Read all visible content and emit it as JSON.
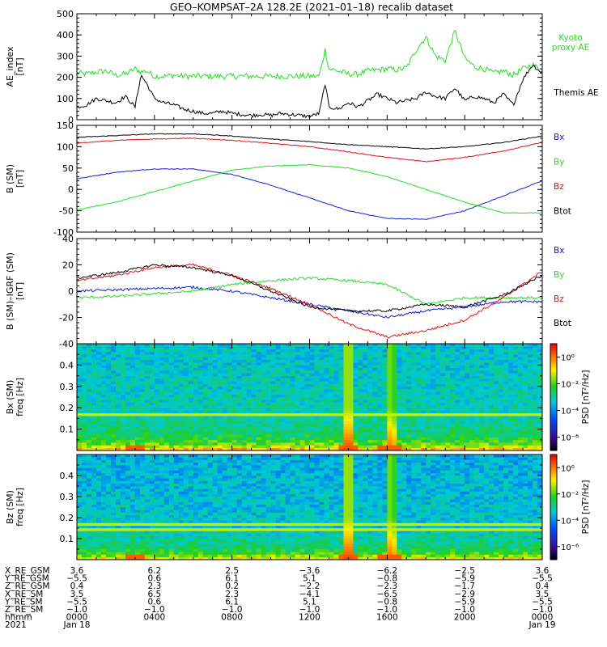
{
  "title": "GEO–KOMPSAT–2A 128.2E (2021–01–18) recalib dataset",
  "colors": {
    "black": "#000000",
    "green": "#22dd22",
    "red": "#e01010",
    "blue": "#1020d0"
  },
  "chart_data": [
    {
      "type": "line",
      "id": "ae",
      "ylabel": "AE_index\n[nT]",
      "ylim": [
        0,
        500
      ],
      "yticks": [
        0,
        100,
        200,
        300,
        400,
        500
      ],
      "legend": [
        {
          "label": "Kyoto\nproxy AE",
          "color": "#22dd22"
        },
        {
          "label": "Themis AE",
          "color": "#000000"
        }
      ],
      "x_hours": [
        0,
        0.5,
        1,
        1.5,
        2,
        2.5,
        3,
        3.3,
        3.6,
        4,
        4.5,
        5,
        5.5,
        6,
        6.5,
        7,
        7.5,
        8,
        8.5,
        9,
        9.5,
        10,
        10.5,
        11,
        11.5,
        12,
        12.5,
        12.8,
        13,
        13.5,
        14,
        14.5,
        15,
        15.5,
        16,
        16.5,
        17,
        17.5,
        18,
        18.5,
        19,
        19.5,
        20,
        20.5,
        21,
        21.5,
        22,
        22.5,
        23,
        23.5,
        24
      ],
      "series": [
        {
          "name": "Kyoto proxy AE",
          "color": "#22dd22",
          "values": [
            220,
            215,
            225,
            230,
            210,
            215,
            240,
            225,
            230,
            205,
            205,
            210,
            205,
            205,
            205,
            205,
            205,
            205,
            205,
            205,
            205,
            205,
            205,
            205,
            205,
            205,
            205,
            330,
            240,
            230,
            215,
            215,
            230,
            235,
            240,
            235,
            245,
            330,
            390,
            300,
            280,
            420,
            290,
            250,
            240,
            220,
            230,
            210,
            240,
            260,
            230
          ]
        },
        {
          "name": "Themis AE",
          "color": "#000000",
          "values": [
            60,
            70,
            100,
            90,
            80,
            110,
            60,
            210,
            170,
            100,
            80,
            70,
            50,
            40,
            30,
            30,
            40,
            30,
            25,
            20,
            25,
            20,
            30,
            25,
            20,
            15,
            30,
            170,
            60,
            50,
            80,
            60,
            90,
            120,
            100,
            80,
            90,
            100,
            130,
            110,
            100,
            150,
            90,
            110,
            100,
            80,
            120,
            70,
            190,
            260,
            220
          ]
        }
      ]
    },
    {
      "type": "line",
      "id": "bsm",
      "ylabel": "B (SM)\n[nT]",
      "ylim": [
        -100,
        150
      ],
      "yticks": [
        -100,
        -50,
        0,
        50,
        100,
        150
      ],
      "legend": [
        {
          "label": "Bx",
          "color": "#1020d0"
        },
        {
          "label": "By",
          "color": "#22dd22"
        },
        {
          "label": "Bz",
          "color": "#e01010"
        },
        {
          "label": "Btot",
          "color": "#000000"
        }
      ],
      "x_hours": [
        0,
        2,
        4,
        6,
        8,
        10,
        12,
        14,
        16,
        18,
        20,
        22,
        24
      ],
      "series": [
        {
          "name": "Bx",
          "color": "#1020d0",
          "values": [
            25,
            40,
            48,
            48,
            35,
            10,
            -20,
            -50,
            -68,
            -70,
            -50,
            -15,
            20
          ]
        },
        {
          "name": "By",
          "color": "#22dd22",
          "values": [
            -48,
            -30,
            -5,
            20,
            45,
            55,
            58,
            50,
            30,
            0,
            -30,
            -55,
            -55
          ]
        },
        {
          "name": "Bz",
          "color": "#e01010",
          "values": [
            108,
            115,
            118,
            120,
            115,
            108,
            100,
            88,
            75,
            65,
            75,
            90,
            110
          ]
        },
        {
          "name": "Btot",
          "color": "#000000",
          "values": [
            122,
            126,
            130,
            130,
            125,
            118,
            112,
            105,
            100,
            95,
            100,
            110,
            125
          ]
        }
      ]
    },
    {
      "type": "line",
      "id": "bsm-igrf",
      "ylabel": "B (SM)–IGRF (SM)\n[nT]",
      "ylim": [
        -40,
        40
      ],
      "yticks": [
        -40,
        -20,
        0,
        20,
        40
      ],
      "legend": [
        {
          "label": "Bx",
          "color": "#1020d0"
        },
        {
          "label": "By",
          "color": "#22dd22"
        },
        {
          "label": "Bz",
          "color": "#e01010"
        },
        {
          "label": "Btot",
          "color": "#000000"
        }
      ],
      "x_hours": [
        0,
        2,
        4,
        6,
        8,
        10,
        12,
        14,
        16,
        18,
        20,
        22,
        24
      ],
      "series": [
        {
          "name": "Bx",
          "color": "#1020d0",
          "values": [
            0,
            1,
            2,
            3,
            0,
            -5,
            -10,
            -15,
            -20,
            -15,
            -12,
            -8,
            -8
          ]
        },
        {
          "name": "By",
          "color": "#22dd22",
          "values": [
            -5,
            -4,
            -2,
            0,
            5,
            8,
            10,
            8,
            5,
            -10,
            -5,
            -5,
            -5
          ]
        },
        {
          "name": "Bz",
          "color": "#e01010",
          "values": [
            8,
            12,
            18,
            20,
            12,
            2,
            -10,
            -25,
            -35,
            -30,
            -22,
            -5,
            15
          ]
        },
        {
          "name": "Btot",
          "color": "#000000",
          "values": [
            10,
            14,
            20,
            18,
            12,
            0,
            -12,
            -15,
            -15,
            -10,
            -12,
            -3,
            12
          ]
        }
      ]
    },
    {
      "type": "heatmap",
      "id": "bx-spec",
      "ylabel": "Bx (SM)\nfreq [Hz]",
      "ylim": [
        0,
        0.5
      ],
      "yticks": [
        0.1,
        0.2,
        0.3,
        0.4
      ],
      "colorbar_label": "PSD [nT²/Hz]",
      "colorbar_ticks": [
        "10⁰",
        "10⁻²",
        "10⁻⁴",
        "10⁻⁶"
      ],
      "colorbar_ticks_log": [
        0,
        -2,
        -4,
        -6
      ],
      "colorbar_range_log": [
        -7,
        1
      ],
      "features": {
        "harmonic_line_hz": 0.17,
        "bursts_hours": [
          14,
          16.2
        ],
        "lowfreq_enhancement_hours": [
          3,
          14,
          16.2
        ]
      }
    },
    {
      "type": "heatmap",
      "id": "bz-spec",
      "ylabel": "Bz (SM)\nfreq [Hz]",
      "ylim": [
        0,
        0.5
      ],
      "yticks": [
        0.1,
        0.2,
        0.3,
        0.4
      ],
      "colorbar_label": "PSD [nT²/Hz]",
      "colorbar_ticks": [
        "10⁰",
        "10⁻²",
        "10⁻⁴",
        "10⁻⁶"
      ],
      "colorbar_ticks_log": [
        0,
        -2,
        -4,
        -6
      ],
      "colorbar_range_log": [
        -7,
        1
      ],
      "features": {
        "harmonic_line_hz": [
          0.14,
          0.17
        ],
        "bursts_hours": [
          14,
          16.2
        ],
        "lowfreq_enhancement_hours": [
          3,
          14,
          16.2
        ]
      }
    }
  ],
  "ephemeris": {
    "rows": [
      {
        "label": "X_RE_GSM",
        "values": [
          "3.6",
          "6.2",
          "2.5",
          "−3.6",
          "−6.2",
          "−2.5",
          "3.6"
        ]
      },
      {
        "label": "Y_RE_GSM",
        "values": [
          "−5.5",
          "0.6",
          "6.1",
          "5.1",
          "−0.8",
          "−5.9",
          "−5.5"
        ]
      },
      {
        "label": "Z_RE_GSM",
        "values": [
          "0.4",
          "2.3",
          "0.2",
          "−2.2",
          "−2.3",
          "−1.7",
          "0.4"
        ]
      },
      {
        "label": "X_RE_SM",
        "values": [
          "3.5",
          "6.5",
          "2.3",
          "−4.1",
          "−6.5",
          "−2.9",
          "3.5"
        ]
      },
      {
        "label": "Y_RE_SM",
        "values": [
          "−5.5",
          "0.6",
          "6.1",
          "5.1",
          "−0.8",
          "−5.9",
          "−5.5"
        ]
      },
      {
        "label": "Z_RE_SM",
        "values": [
          "−1.0",
          "−1.0",
          "−1.0",
          "−1.0",
          "−1.0",
          "−1.0",
          "−1.0"
        ]
      },
      {
        "label": "hhmm",
        "values": [
          "0000",
          "0400",
          "0800",
          "1200",
          "1600",
          "2000",
          "0000"
        ]
      },
      {
        "label": "2021",
        "values": [
          "Jan 18",
          "",
          "",
          "",
          "",
          "",
          "Jan 19"
        ]
      }
    ]
  }
}
